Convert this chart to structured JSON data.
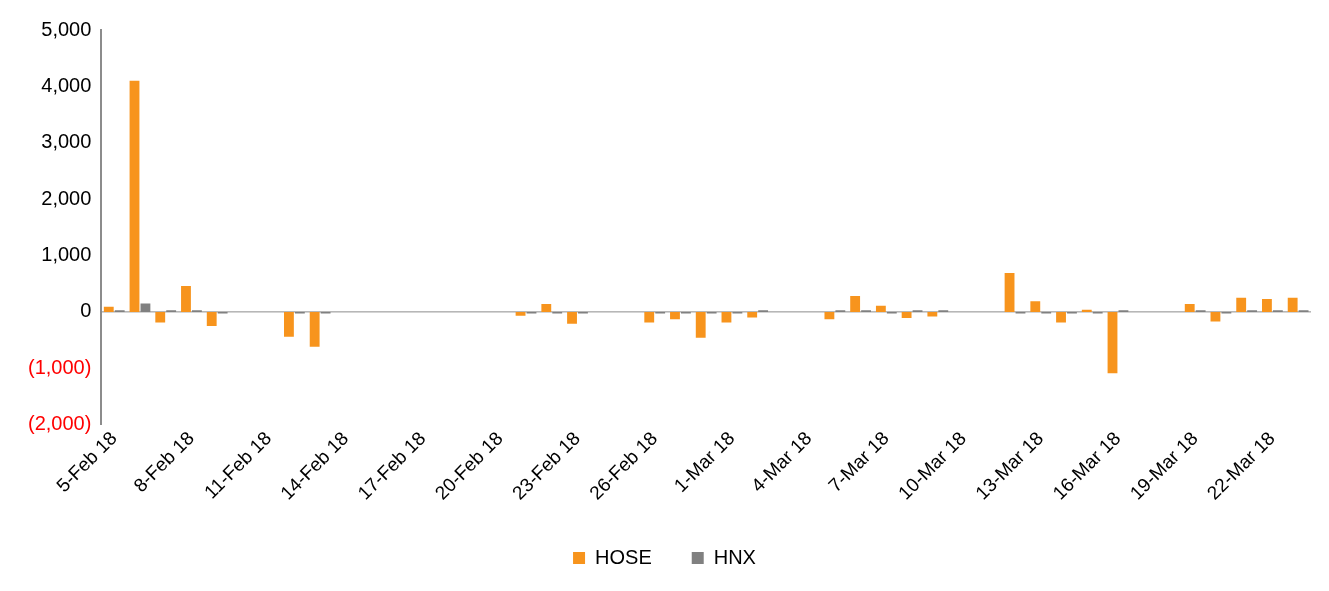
{
  "chart_data": {
    "type": "bar",
    "categories": [
      "5-Feb 18",
      null,
      null,
      "8-Feb 18",
      null,
      null,
      "11-Feb 18",
      null,
      null,
      "14-Feb 18",
      null,
      null,
      "17-Feb 18",
      null,
      null,
      "20-Feb 18",
      null,
      null,
      "23-Feb 18",
      null,
      null,
      "26-Feb 18",
      null,
      null,
      "1-Mar 18",
      null,
      null,
      "4-Mar 18",
      null,
      null,
      "7-Mar 18",
      null,
      null,
      "10-Mar 18",
      null,
      null,
      "13-Mar 18",
      null,
      null,
      "16-Mar 18",
      null,
      null,
      "19-Mar 18",
      null,
      null,
      "22-Mar 18",
      null
    ],
    "series": [
      {
        "name": "HOSE",
        "color": "#f7941d",
        "values": [
          90,
          4100,
          -190,
          460,
          -250,
          null,
          null,
          -440,
          -620,
          null,
          null,
          null,
          null,
          null,
          null,
          null,
          -70,
          140,
          -210,
          null,
          null,
          -190,
          -130,
          -460,
          -190,
          -100,
          null,
          null,
          -130,
          280,
          110,
          -110,
          -80,
          null,
          null,
          690,
          190,
          -190,
          40,
          -1090,
          null,
          null,
          140,
          -170,
          250,
          230,
          250
        ]
      },
      {
        "name": "HNX",
        "color": "#808080",
        "values": [
          30,
          150,
          30,
          30,
          -30,
          null,
          null,
          -30,
          -30,
          null,
          null,
          null,
          null,
          null,
          null,
          null,
          -30,
          -30,
          -30,
          null,
          null,
          -30,
          -30,
          -30,
          -30,
          30,
          null,
          null,
          30,
          30,
          -30,
          30,
          30,
          null,
          null,
          -30,
          -30,
          -30,
          -30,
          30,
          null,
          null,
          30,
          -30,
          30,
          30,
          30
        ]
      }
    ],
    "ylim": [
      -2000,
      5000
    ],
    "yticks": [
      {
        "value": -2000,
        "label": "(2,000)"
      },
      {
        "value": -1000,
        "label": "(1,000)"
      },
      {
        "value": 0,
        "label": "0"
      },
      {
        "value": 1000,
        "label": "1,000"
      },
      {
        "value": 2000,
        "label": "2,000"
      },
      {
        "value": 3000,
        "label": "3,000"
      },
      {
        "value": 4000,
        "label": "4,000"
      },
      {
        "value": 5000,
        "label": "5,000"
      }
    ],
    "grid": false,
    "ref_lines": [
      {
        "axis": "y",
        "value": 0,
        "color": "#8c8c8c"
      }
    ],
    "legend": "bottom"
  }
}
